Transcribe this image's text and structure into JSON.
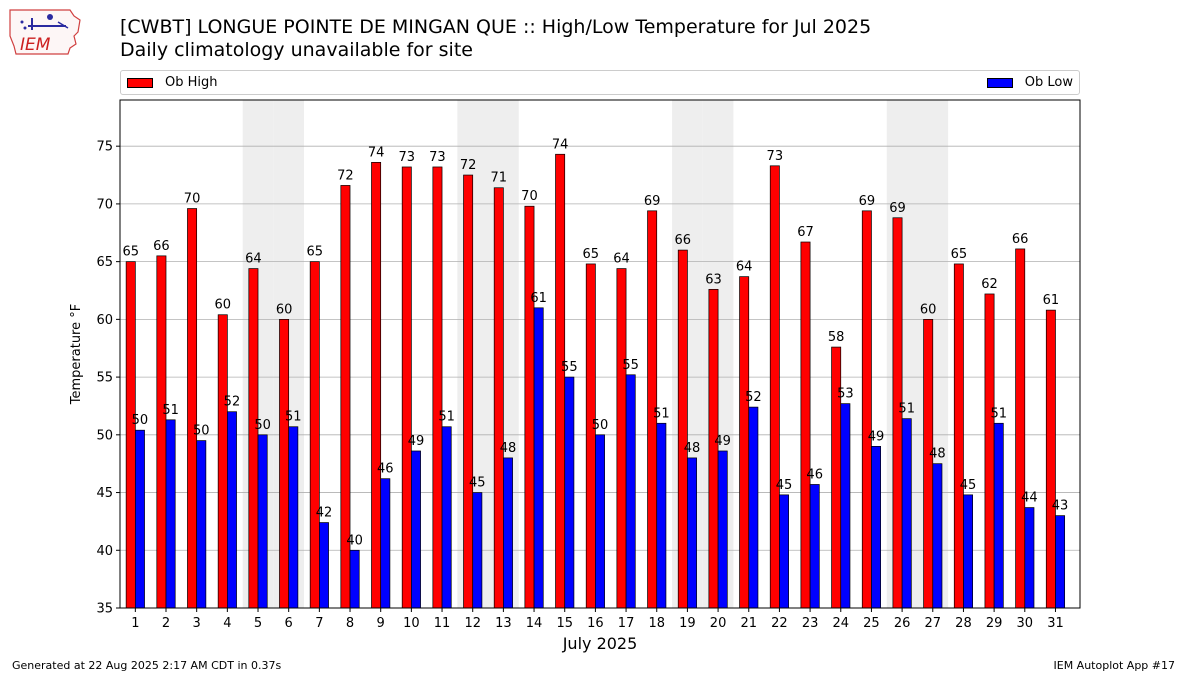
{
  "header": {
    "logo_text": "IEM",
    "title_line1": "[CWBT] LONGUE POINTE DE MINGAN QUE :: High/Low Temperature for Jul 2025",
    "title_line2": "Daily climatology unavailable for site"
  },
  "footer": {
    "left": "Generated at 22 Aug 2025 2:17 AM CDT in 0.37s",
    "right": "IEM Autoplot App #17"
  },
  "colors": {
    "high": "#ff0000",
    "low": "#0000ff",
    "weekend_band": "#eeeeee",
    "grid": "#b0b0b0"
  },
  "chart_data": {
    "type": "bar",
    "xlabel": "July 2025",
    "ylabel": "Temperature °F",
    "ylim": [
      35,
      79
    ],
    "yticks": [
      35,
      40,
      45,
      50,
      55,
      60,
      65,
      70,
      75
    ],
    "grid": "horizontal",
    "legend_placement": "top",
    "categories": [
      1,
      2,
      3,
      4,
      5,
      6,
      7,
      8,
      9,
      10,
      11,
      12,
      13,
      14,
      15,
      16,
      17,
      18,
      19,
      20,
      21,
      22,
      23,
      24,
      25,
      26,
      27,
      28,
      29,
      30,
      31
    ],
    "weekend_days": [
      5,
      6,
      12,
      13,
      19,
      20,
      26,
      27
    ],
    "series": [
      {
        "name": "Ob High",
        "color": "#ff0000",
        "values": [
          65,
          65.5,
          69.6,
          60.4,
          64.4,
          60,
          65,
          71.6,
          73.6,
          73.2,
          73.2,
          72.5,
          71.4,
          69.8,
          74.3,
          64.8,
          64.4,
          69.4,
          66,
          62.6,
          63.7,
          73.3,
          66.7,
          57.6,
          69.4,
          68.8,
          60,
          64.8,
          62.2,
          66.1,
          60.8
        ],
        "labels": [
          "65",
          "66",
          "70",
          "60",
          "64",
          "60",
          "65",
          "72",
          "74",
          "73",
          "73",
          "72",
          "71",
          "70",
          "74",
          "65",
          "64",
          "69",
          "66",
          "63",
          "64",
          "73",
          "67",
          "58",
          "69",
          "69",
          "60",
          "65",
          "62",
          "66",
          "61"
        ]
      },
      {
        "name": "Ob Low",
        "color": "#0000ff",
        "values": [
          50.4,
          51.3,
          49.5,
          52,
          50,
          50.7,
          42.4,
          40,
          46.2,
          48.6,
          50.7,
          45,
          48,
          61,
          55,
          50,
          55.2,
          51,
          48,
          48.6,
          52.4,
          44.8,
          45.7,
          52.7,
          49,
          51.4,
          47.5,
          44.8,
          51,
          43.7,
          43
        ],
        "labels": [
          "50",
          "51",
          "50",
          "52",
          "50",
          "51",
          "42",
          "40",
          "46",
          "49",
          "51",
          "45",
          "48",
          "61",
          "55",
          "50",
          "55",
          "51",
          "48",
          "49",
          "52",
          "45",
          "46",
          "53",
          "49",
          "51",
          "48",
          "45",
          "51",
          "44",
          "43"
        ]
      }
    ]
  }
}
